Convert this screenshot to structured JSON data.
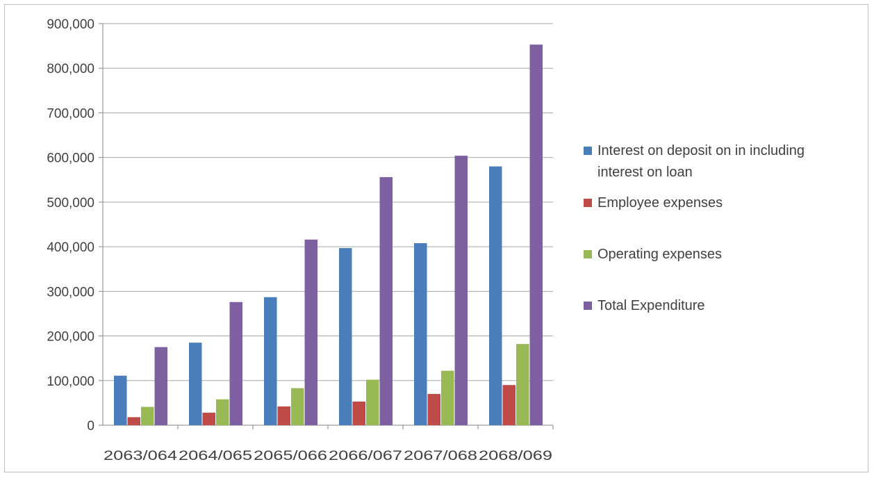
{
  "chart_data": {
    "type": "bar",
    "title": "",
    "xlabel": "",
    "ylabel": "",
    "categories": [
      "2063/064",
      "2064/065",
      "2065/066",
      "2066/067",
      "2067/068",
      "2068/069"
    ],
    "ylim": [
      0,
      900000
    ],
    "yticks": [
      {
        "value": 0,
        "label": "0"
      },
      {
        "value": 100000,
        "label": "100,000"
      },
      {
        "value": 200000,
        "label": "200,000"
      },
      {
        "value": 300000,
        "label": "300,000"
      },
      {
        "value": 400000,
        "label": "400,000"
      },
      {
        "value": 500000,
        "label": "500,000"
      },
      {
        "value": 600000,
        "label": "600,000"
      },
      {
        "value": 700000,
        "label": "700,000"
      },
      {
        "value": 800000,
        "label": "800,000"
      },
      {
        "value": 900000,
        "label": "900,000"
      }
    ],
    "grid": true,
    "legend_position": "right",
    "series": [
      {
        "name": "Interest on deposit on in including interest on loan",
        "legend_lines": [
          "Interest on deposit on in including",
          "interest on loan"
        ],
        "color": "#4a7ebb",
        "values": [
          111000,
          185000,
          287000,
          397000,
          408000,
          580000
        ]
      },
      {
        "name": "Employee expenses",
        "legend_lines": [
          "Employee expenses"
        ],
        "color": "#be4b48",
        "values": [
          18000,
          28000,
          42000,
          53000,
          70000,
          90000
        ]
      },
      {
        "name": "Operating expenses",
        "legend_lines": [
          "Operating expenses"
        ],
        "color": "#98b954",
        "values": [
          41000,
          58000,
          83000,
          102000,
          122000,
          182000
        ]
      },
      {
        "name": "Total Expenditure",
        "legend_lines": [
          "Total Expenditure"
        ],
        "color": "#7d60a0",
        "values": [
          175000,
          276000,
          416000,
          556000,
          604000,
          853000
        ]
      }
    ]
  }
}
